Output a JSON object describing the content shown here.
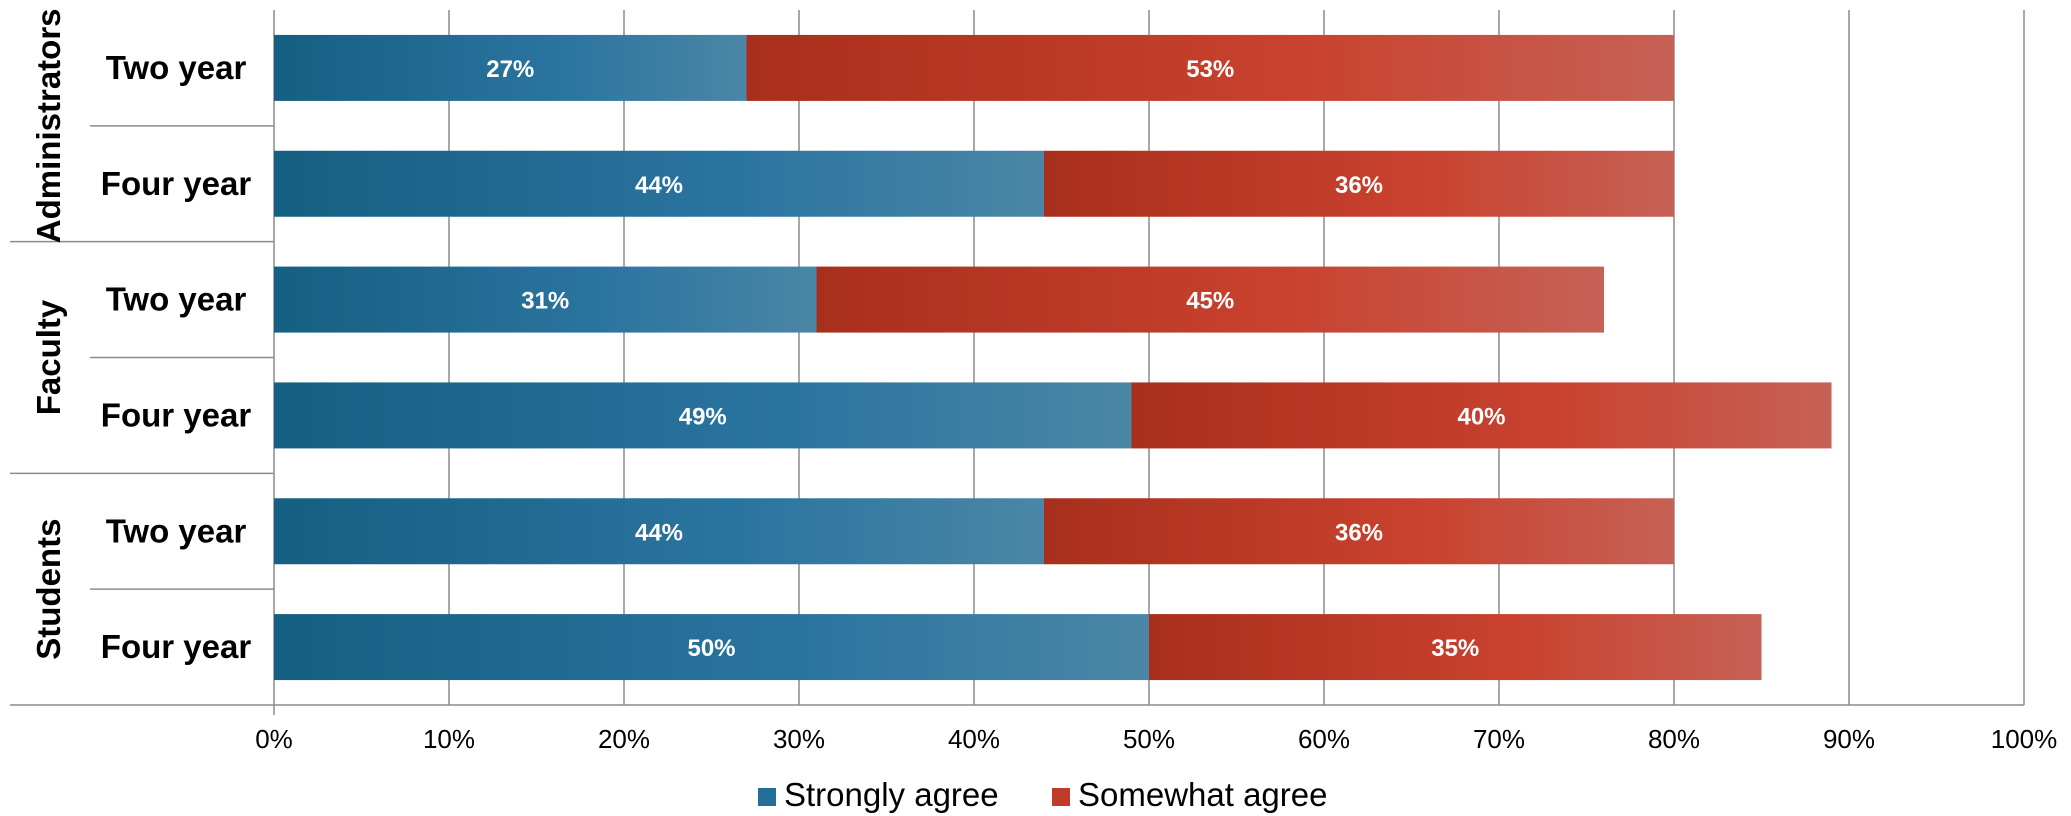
{
  "chart_data": {
    "type": "bar",
    "orientation": "horizontal",
    "stacked": true,
    "groups": [
      {
        "name": "Administrators",
        "categories": [
          "Two year",
          "Four year"
        ]
      },
      {
        "name": "Faculty",
        "categories": [
          "Two year",
          "Four year"
        ]
      },
      {
        "name": "Students",
        "categories": [
          "Two year",
          "Four year"
        ]
      }
    ],
    "series": [
      {
        "name": "Strongly agree",
        "color": "#1f6a8c",
        "values": [
          27,
          44,
          31,
          49,
          44,
          50
        ],
        "labels": [
          "27%",
          "44%",
          "31%",
          "49%",
          "44%",
          "50%"
        ]
      },
      {
        "name": "Somewhat agree",
        "color": "#c0392b",
        "values": [
          53,
          36,
          45,
          40,
          36,
          35
        ],
        "labels": [
          "53%",
          "36%",
          "45%",
          "40%",
          "36%",
          "35%"
        ]
      }
    ],
    "xlim": [
      0,
      100
    ],
    "xticks": [
      "0%",
      "10%",
      "20%",
      "30%",
      "40%",
      "50%",
      "60%",
      "70%",
      "80%",
      "90%",
      "100%"
    ],
    "grid": true,
    "legend_position": "bottom"
  }
}
